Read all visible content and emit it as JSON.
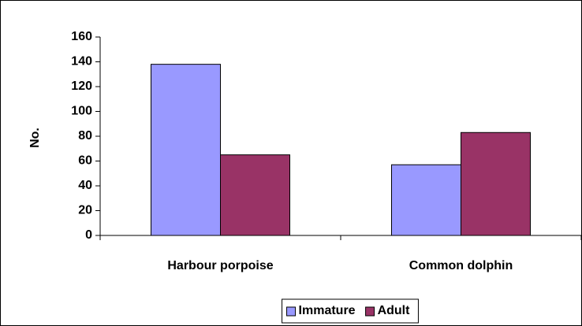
{
  "chart_data": {
    "type": "bar",
    "y_label": "No.",
    "categories": [
      "Harbour porpoise",
      "Common dolphin"
    ],
    "series": [
      {
        "name": "Immature",
        "color": "#9999ff",
        "values": [
          138,
          57
        ]
      },
      {
        "name": "Adult",
        "color": "#993366",
        "values": [
          65,
          83
        ]
      }
    ],
    "ylim": [
      0,
      160
    ],
    "yticks": [
      0,
      20,
      40,
      60,
      80,
      100,
      120,
      140,
      160
    ],
    "grid": false,
    "legend": "bottom"
  }
}
